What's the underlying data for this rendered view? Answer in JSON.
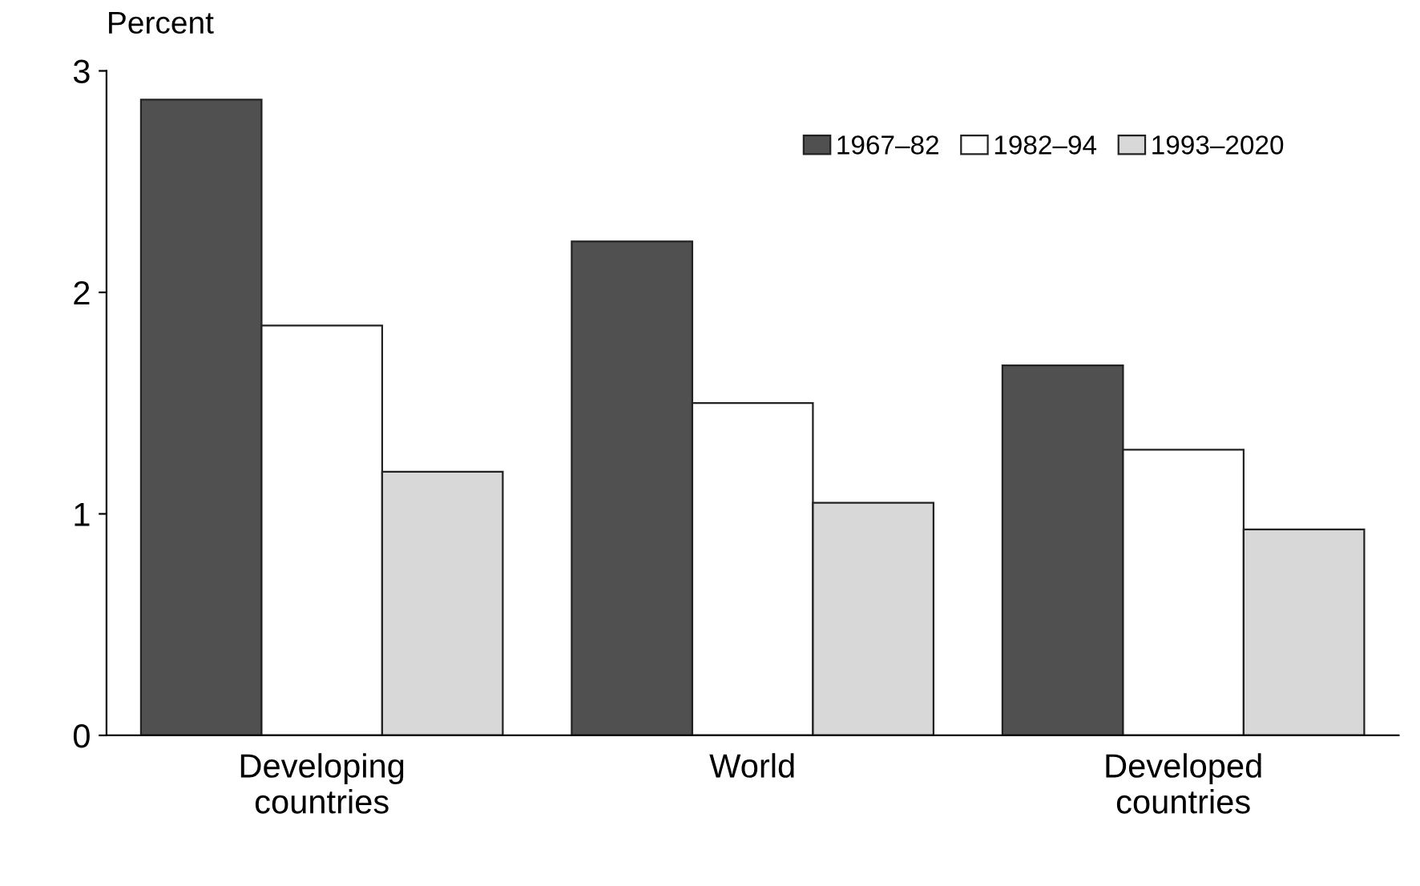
{
  "chart_data": {
    "type": "bar",
    "ylabel": "Percent",
    "categories": [
      "Developing\ncountries",
      "World",
      "Developed\ncountries"
    ],
    "series": [
      {
        "name": "1967–82",
        "color": "#505050",
        "values": [
          2.87,
          2.23,
          1.67
        ]
      },
      {
        "name": "1982–94",
        "color": "#ffffff",
        "values": [
          1.85,
          1.5,
          1.29
        ]
      },
      {
        "name": "1993–2020",
        "color": "#d8d8d8",
        "values": [
          1.19,
          1.05,
          0.93
        ]
      }
    ],
    "ylim": [
      0,
      3
    ],
    "yticks": [
      0,
      1,
      2,
      3
    ],
    "grid": false,
    "legend": "top right"
  }
}
